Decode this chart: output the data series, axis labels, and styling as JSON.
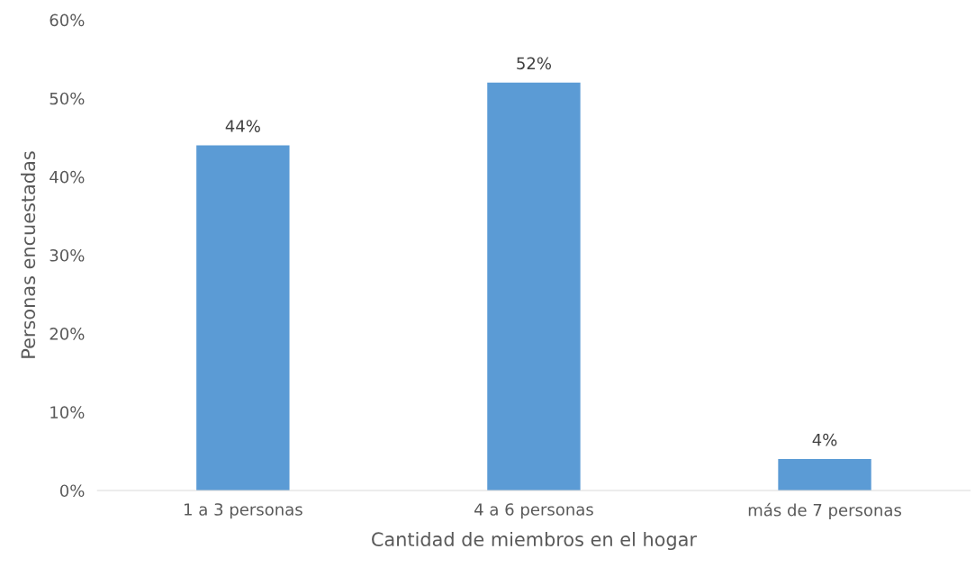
{
  "chart_data": {
    "type": "bar",
    "xlabel": "Cantidad de miembros en el hogar",
    "ylabel": "Personas encuestadas",
    "categories": [
      "1 a 3 personas",
      "4 a 6 personas",
      "más de 7 personas"
    ],
    "values": [
      44,
      52,
      4
    ],
    "value_labels": [
      "44%",
      "52%",
      "4%"
    ],
    "color": "#5b9bd5",
    "ylim": [
      0,
      60
    ],
    "yticks": [
      {
        "value": 0,
        "label": "0%"
      },
      {
        "value": 10,
        "label": "10%"
      },
      {
        "value": 20,
        "label": "20%"
      },
      {
        "value": 30,
        "label": "30%"
      },
      {
        "value": 40,
        "label": "40%"
      },
      {
        "value": 50,
        "label": "50%"
      },
      {
        "value": 60,
        "label": "60%"
      }
    ],
    "grid": false,
    "legend": false
  }
}
